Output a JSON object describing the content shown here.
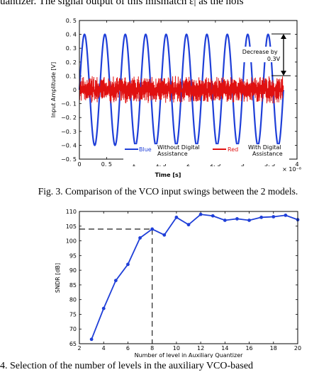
{
  "text": {
    "top_line": "uantizer. The signal output of this mismatch ε| as the nois",
    "fig3_caption": "Fig. 3. Comparison of the VCO input swings between the 2 models.",
    "bottom_line": "4. Selection of the number of levels in the auxiliary VCO-based"
  },
  "chart_data": [
    {
      "type": "line",
      "title": "",
      "xlabel": "Time [s]",
      "ylabel": "Input Amplitude [V]",
      "x_exponent": "× 10⁻⁸",
      "xlim": [
        0,
        4
      ],
      "ylim": [
        -0.5,
        0.5
      ],
      "x_ticks": [
        0,
        0.5,
        1,
        1.5,
        2,
        2.5,
        3,
        3.5,
        4
      ],
      "x_tick_labels": [
        "0",
        "0. 5",
        "1",
        "1. 5",
        "2",
        "2. 5",
        "3",
        "3. 5",
        "4"
      ],
      "y_ticks": [
        -0.5,
        -0.4,
        -0.3,
        -0.2,
        -0.1,
        0,
        0.1,
        0.2,
        0.3,
        0.4,
        0.5
      ],
      "y_tick_labels": [
        "−0. 5",
        "−0. 4",
        "−0. 3",
        "−0. 2",
        "−0. 1",
        "0",
        "0. 1",
        "0. 2",
        "0. 3",
        "0. 4",
        "0. 5"
      ],
      "series": [
        {
          "legend": "Blue",
          "description": "Without Digital Assistance",
          "color": "#1f3fd8",
          "amplitude": 0.4,
          "periods": 10,
          "x_range": [
            0,
            3.75
          ]
        },
        {
          "legend": "Red",
          "description": "With Digital Assistance",
          "color": "#e01010",
          "amplitude": 0.1,
          "x_range": [
            0,
            3.75
          ]
        }
      ],
      "annotation": "Decrease by 0.3V",
      "grid": false
    },
    {
      "type": "line",
      "title": "",
      "xlabel": "Number of level in Auxiliary Quantizer",
      "ylabel": "SNDR [dB]",
      "xlim": [
        2,
        20
      ],
      "ylim": [
        65,
        110
      ],
      "x_ticks": [
        2,
        4,
        6,
        8,
        10,
        12,
        14,
        16,
        18,
        20
      ],
      "y_ticks": [
        65,
        70,
        75,
        80,
        85,
        90,
        95,
        100,
        105,
        110
      ],
      "series": [
        {
          "color": "#1f3fd8",
          "x": [
            3,
            4,
            5,
            6,
            7,
            8,
            9,
            10,
            11,
            12,
            13,
            14,
            15,
            16,
            17,
            18,
            19,
            20
          ],
          "y": [
            66.5,
            77,
            86.5,
            92,
            101,
            104,
            102,
            108,
            105.5,
            109,
            108.5,
            107,
            107.5,
            107,
            108,
            108.2,
            108.7,
            107.2
          ]
        }
      ],
      "reference_point": {
        "x": 8,
        "y": 104
      },
      "grid": false
    }
  ]
}
